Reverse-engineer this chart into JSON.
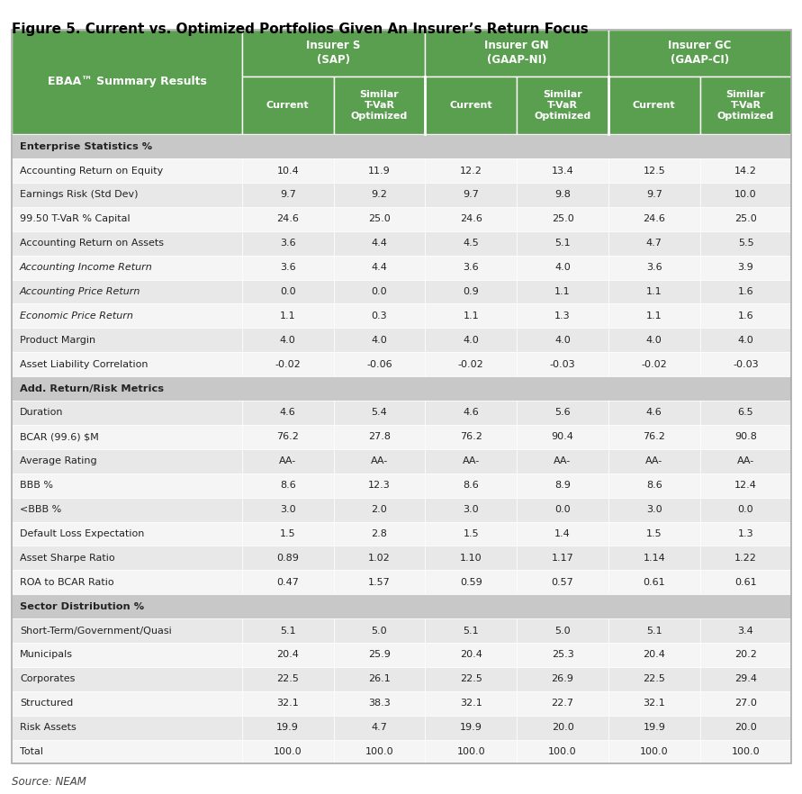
{
  "title": "Figure 5. Current vs. Optimized Portfolios Given An Insurer’s Return Focus",
  "source": "Source: NEAM",
  "green_color": "#5a9e4f",
  "header_text_color": "#ffffff",
  "section_bg_color": "#c8c8c8",
  "alt_row_color": "#e8e8e8",
  "white_row_color": "#f5f5f5",
  "col_headers_row1": [
    "Insurer S\n(SAP)",
    "Insurer GN\n(GAAP-NI)",
    "Insurer GC\n(GAAP-CI)"
  ],
  "col_headers_row2": [
    "Current",
    "Similar\nT-VaR\nOptimized",
    "Current",
    "Similar\nT-VaR\nOptimized",
    "Current",
    "Similar\nT-VaR\nOptimized"
  ],
  "row_header": "EBAA™ Summary Results",
  "sections": [
    {
      "name": "Enterprise Statistics %",
      "is_section": true
    },
    {
      "name": "Accounting Return on Equity",
      "italic": false,
      "values": [
        "10.4",
        "11.9",
        "12.2",
        "13.4",
        "12.5",
        "14.2"
      ]
    },
    {
      "name": "Earnings Risk (Std Dev)",
      "italic": false,
      "values": [
        "9.7",
        "9.2",
        "9.7",
        "9.8",
        "9.7",
        "10.0"
      ]
    },
    {
      "name": "99.50 T-VaR % Capital",
      "italic": false,
      "values": [
        "24.6",
        "25.0",
        "24.6",
        "25.0",
        "24.6",
        "25.0"
      ]
    },
    {
      "name": "Accounting Return on Assets",
      "italic": false,
      "values": [
        "3.6",
        "4.4",
        "4.5",
        "5.1",
        "4.7",
        "5.5"
      ]
    },
    {
      "name": "Accounting Income Return",
      "italic": true,
      "values": [
        "3.6",
        "4.4",
        "3.6",
        "4.0",
        "3.6",
        "3.9"
      ]
    },
    {
      "name": "Accounting Price Return",
      "italic": true,
      "values": [
        "0.0",
        "0.0",
        "0.9",
        "1.1",
        "1.1",
        "1.6"
      ]
    },
    {
      "name": "Economic Price Return",
      "italic": true,
      "values": [
        "1.1",
        "0.3",
        "1.1",
        "1.3",
        "1.1",
        "1.6"
      ]
    },
    {
      "name": "Product Margin",
      "italic": false,
      "values": [
        "4.0",
        "4.0",
        "4.0",
        "4.0",
        "4.0",
        "4.0"
      ]
    },
    {
      "name": "Asset Liability Correlation",
      "italic": false,
      "values": [
        "-0.02",
        "-0.06",
        "-0.02",
        "-0.03",
        "-0.02",
        "-0.03"
      ]
    },
    {
      "name": "Add. Return/Risk Metrics",
      "is_section": true
    },
    {
      "name": "Duration",
      "italic": false,
      "values": [
        "4.6",
        "5.4",
        "4.6",
        "5.6",
        "4.6",
        "6.5"
      ]
    },
    {
      "name": "BCAR (99.6) $M",
      "italic": false,
      "values": [
        "76.2",
        "27.8",
        "76.2",
        "90.4",
        "76.2",
        "90.8"
      ]
    },
    {
      "name": "Average Rating",
      "italic": false,
      "values": [
        "AA-",
        "AA-",
        "AA-",
        "AA-",
        "AA-",
        "AA-"
      ]
    },
    {
      "name": "BBB %",
      "italic": false,
      "values": [
        "8.6",
        "12.3",
        "8.6",
        "8.9",
        "8.6",
        "12.4"
      ]
    },
    {
      "name": "<BBB %",
      "italic": false,
      "values": [
        "3.0",
        "2.0",
        "3.0",
        "0.0",
        "3.0",
        "0.0"
      ]
    },
    {
      "name": "Default Loss Expectation",
      "italic": false,
      "values": [
        "1.5",
        "2.8",
        "1.5",
        "1.4",
        "1.5",
        "1.3"
      ]
    },
    {
      "name": "Asset Sharpe Ratio",
      "italic": false,
      "values": [
        "0.89",
        "1.02",
        "1.10",
        "1.17",
        "1.14",
        "1.22"
      ]
    },
    {
      "name": "ROA to BCAR Ratio",
      "italic": false,
      "values": [
        "0.47",
        "1.57",
        "0.59",
        "0.57",
        "0.61",
        "0.61"
      ]
    },
    {
      "name": "Sector Distribution %",
      "is_section": true
    },
    {
      "name": "Short-Term/Government/Quasi",
      "italic": false,
      "values": [
        "5.1",
        "5.0",
        "5.1",
        "5.0",
        "5.1",
        "3.4"
      ]
    },
    {
      "name": "Municipals",
      "italic": false,
      "values": [
        "20.4",
        "25.9",
        "20.4",
        "25.3",
        "20.4",
        "20.2"
      ]
    },
    {
      "name": "Corporates",
      "italic": false,
      "values": [
        "22.5",
        "26.1",
        "22.5",
        "26.9",
        "22.5",
        "29.4"
      ]
    },
    {
      "name": "Structured",
      "italic": false,
      "values": [
        "32.1",
        "38.3",
        "32.1",
        "22.7",
        "32.1",
        "27.0"
      ]
    },
    {
      "name": "Risk Assets",
      "italic": false,
      "values": [
        "19.9",
        "4.7",
        "19.9",
        "20.0",
        "19.9",
        "20.0"
      ]
    },
    {
      "name": "Total",
      "italic": false,
      "values": [
        "100.0",
        "100.0",
        "100.0",
        "100.0",
        "100.0",
        "100.0"
      ]
    }
  ]
}
